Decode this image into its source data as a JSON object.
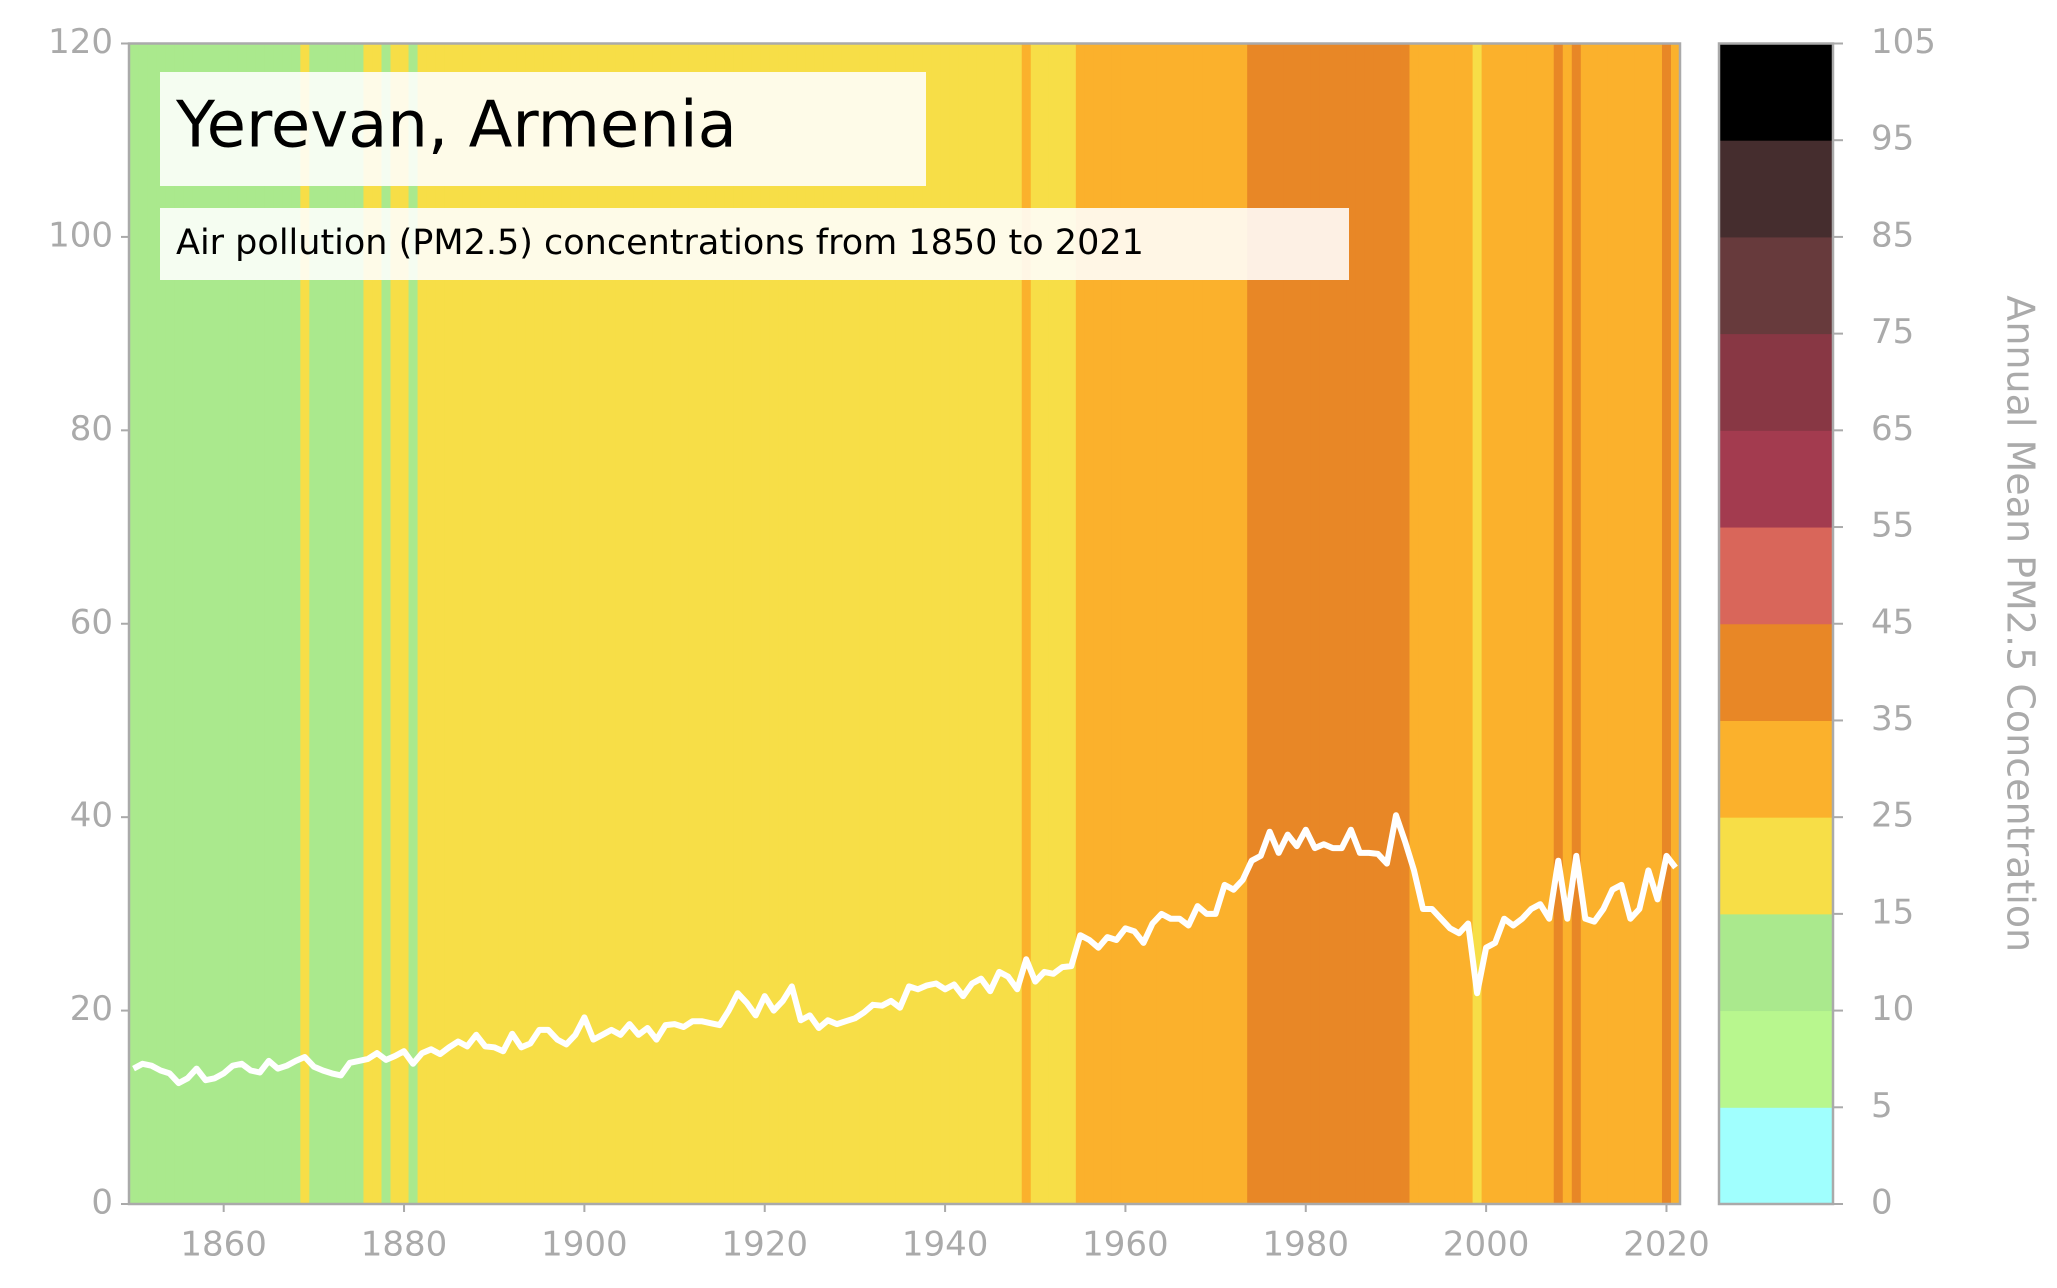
{
  "chart_data": {
    "type": "line",
    "title": "Yerevan, Armenia",
    "subtitle": "Air pollution (PM2.5) concentrations from 1850 to 2021",
    "x": [
      1850,
      1851,
      1852,
      1853,
      1854,
      1855,
      1856,
      1857,
      1858,
      1859,
      1860,
      1861,
      1862,
      1863,
      1864,
      1865,
      1866,
      1867,
      1868,
      1869,
      1870,
      1871,
      1872,
      1873,
      1874,
      1875,
      1876,
      1877,
      1878,
      1879,
      1880,
      1881,
      1882,
      1883,
      1884,
      1885,
      1886,
      1887,
      1888,
      1889,
      1890,
      1891,
      1892,
      1893,
      1894,
      1895,
      1896,
      1897,
      1898,
      1899,
      1900,
      1901,
      1902,
      1903,
      1904,
      1905,
      1906,
      1907,
      1908,
      1909,
      1910,
      1911,
      1912,
      1913,
      1914,
      1915,
      1916,
      1917,
      1918,
      1919,
      1920,
      1921,
      1922,
      1923,
      1924,
      1925,
      1926,
      1927,
      1928,
      1929,
      1930,
      1931,
      1932,
      1933,
      1934,
      1935,
      1936,
      1937,
      1938,
      1939,
      1940,
      1941,
      1942,
      1943,
      1944,
      1945,
      1946,
      1947,
      1948,
      1949,
      1950,
      1951,
      1952,
      1953,
      1954,
      1955,
      1956,
      1957,
      1958,
      1959,
      1960,
      1961,
      1962,
      1963,
      1964,
      1965,
      1966,
      1967,
      1968,
      1969,
      1970,
      1971,
      1972,
      1973,
      1974,
      1975,
      1976,
      1977,
      1978,
      1979,
      1980,
      1981,
      1982,
      1983,
      1984,
      1985,
      1986,
      1987,
      1988,
      1989,
      1990,
      1991,
      1992,
      1993,
      1994,
      1995,
      1996,
      1997,
      1998,
      1999,
      2000,
      2001,
      2002,
      2003,
      2004,
      2005,
      2006,
      2007,
      2008,
      2009,
      2010,
      2011,
      2012,
      2013,
      2014,
      2015,
      2016,
      2017,
      2018,
      2019,
      2020,
      2021
    ],
    "series": [
      {
        "color": "#ffffff",
        "values": [
          14,
          14.5,
          14.3,
          13.8,
          13.5,
          12.5,
          13,
          14,
          12.8,
          13,
          13.5,
          14.3,
          14.5,
          13.8,
          13.6,
          14.8,
          14,
          14.3,
          14.8,
          15.2,
          14.2,
          13.8,
          13.5,
          13.3,
          14.6,
          14.8,
          15,
          15.6,
          14.9,
          15.3,
          15.8,
          14.5,
          15.6,
          16,
          15.5,
          16.2,
          16.8,
          16.3,
          17.5,
          16.3,
          16.2,
          15.8,
          17.6,
          16.2,
          16.6,
          18,
          18,
          17,
          16.5,
          17.5,
          19.3,
          17,
          17.5,
          18,
          17.5,
          18.6,
          17.5,
          18.2,
          17,
          18.5,
          18.6,
          18.3,
          18.9,
          18.9,
          18.7,
          18.5,
          20,
          21.8,
          20.8,
          19.5,
          21.5,
          20,
          21,
          22.5,
          19,
          19.5,
          18.2,
          19,
          18.6,
          18.9,
          19.2,
          19.8,
          20.6,
          20.5,
          21,
          20.3,
          22.5,
          22.2,
          22.6,
          22.8,
          22.2,
          22.7,
          21.5,
          22.8,
          23.3,
          22,
          24,
          23.5,
          22.2,
          25.3,
          23,
          24,
          23.8,
          24.5,
          24.6,
          27.8,
          27.3,
          26.5,
          27.6,
          27.3,
          28.5,
          28.2,
          27,
          29,
          30,
          29.5,
          29.5,
          28.8,
          30.8,
          30,
          30,
          33,
          32.5,
          33.5,
          35.5,
          36,
          38.5,
          36.3,
          38.2,
          37,
          38.7,
          36.8,
          37.2,
          36.8,
          36.8,
          38.7,
          36.3,
          36.3,
          36.2,
          35.2,
          40.2,
          37.5,
          34.5,
          30.5,
          30.5,
          29.5,
          28.5,
          28,
          29,
          21.8,
          26.5,
          27,
          29.5,
          28.8,
          29.5,
          30.5,
          31,
          29.5,
          35.5,
          29.5,
          36,
          29.5,
          29.2,
          30.5,
          32.5,
          33,
          29.5,
          30.5,
          34.5,
          31.5,
          36,
          34.8
        ]
      }
    ],
    "xlim": [
      1849.5,
      2021.5
    ],
    "xticks": [
      1860,
      1880,
      1900,
      1920,
      1940,
      1960,
      1980,
      2000,
      2020
    ],
    "ylim": [
      0,
      120
    ],
    "yticks": [
      0,
      20,
      40,
      60,
      80,
      100,
      120
    ],
    "colorbar": {
      "label": "Annual Mean PM2.5 Concentration",
      "bounds": [
        0,
        5,
        10,
        15,
        25,
        35,
        45,
        55,
        65,
        75,
        85,
        95,
        105
      ],
      "colors": [
        "#a0fffe",
        "#b8f78e",
        "#aae98d",
        "#f7de47",
        "#fbb12c",
        "#e88726",
        "#d9665a",
        "#a33b4f",
        "#883744",
        "#673a3c",
        "#452d2e",
        "#000000"
      ]
    }
  }
}
